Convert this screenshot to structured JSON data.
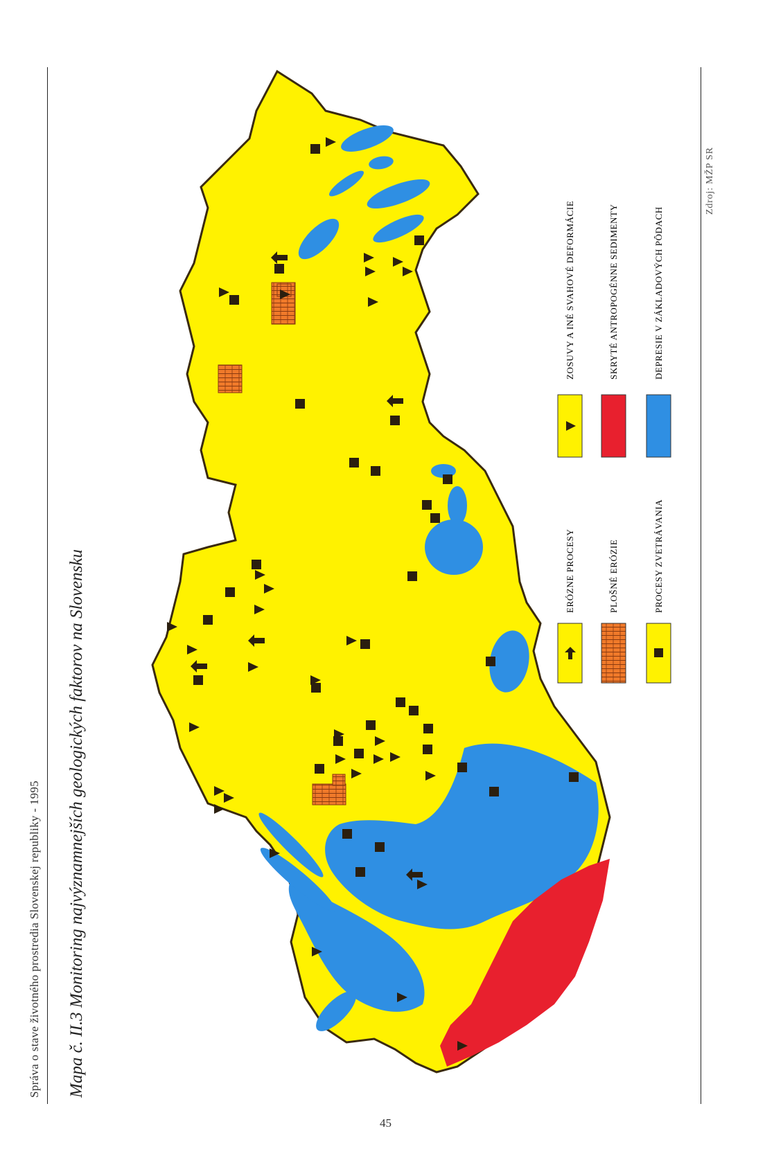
{
  "header": {
    "report_title": "Správa o stave životného prostredia Slovenskej republiky - 1995"
  },
  "map": {
    "title": "Mapa č. II.3 Monitoring najvýznamnejších geologických faktorov na Slovensku",
    "source": "Zdroj: MŽP SR",
    "colors": {
      "land": "#fff200",
      "depression": "#2f8fe3",
      "sediment": "#e8202e",
      "erosion_area": "#f07a2a",
      "border": "#3a2a10",
      "marker": "#2b1f0f"
    },
    "legend": [
      {
        "label": "ERÓZNE PROCESY",
        "symbol": "arrow-icon",
        "fill": "#fff200"
      },
      {
        "label": "PLOŠNÉ ERÓZIE",
        "symbol": "hatch-pattern-icon",
        "fill": "#f07a2a"
      },
      {
        "label": "PROCESY ZVETRÁVANIA",
        "symbol": "square-icon",
        "fill": "#fff200"
      },
      {
        "label": "ZOSUVY A INÉ SVAHOVÉ DEFORMÁCIE",
        "symbol": "triangle-icon",
        "fill": "#fff200"
      },
      {
        "label": "SKRYTÉ ANTROPOGÉNNE SEDIMENTY",
        "symbol": "none",
        "fill": "#e8202e"
      },
      {
        "label": "DEPRESIE V ZÁKLADOVÝCH PÔDACH",
        "symbol": "none",
        "fill": "#2f8fe3"
      }
    ]
  },
  "page_number": "45"
}
